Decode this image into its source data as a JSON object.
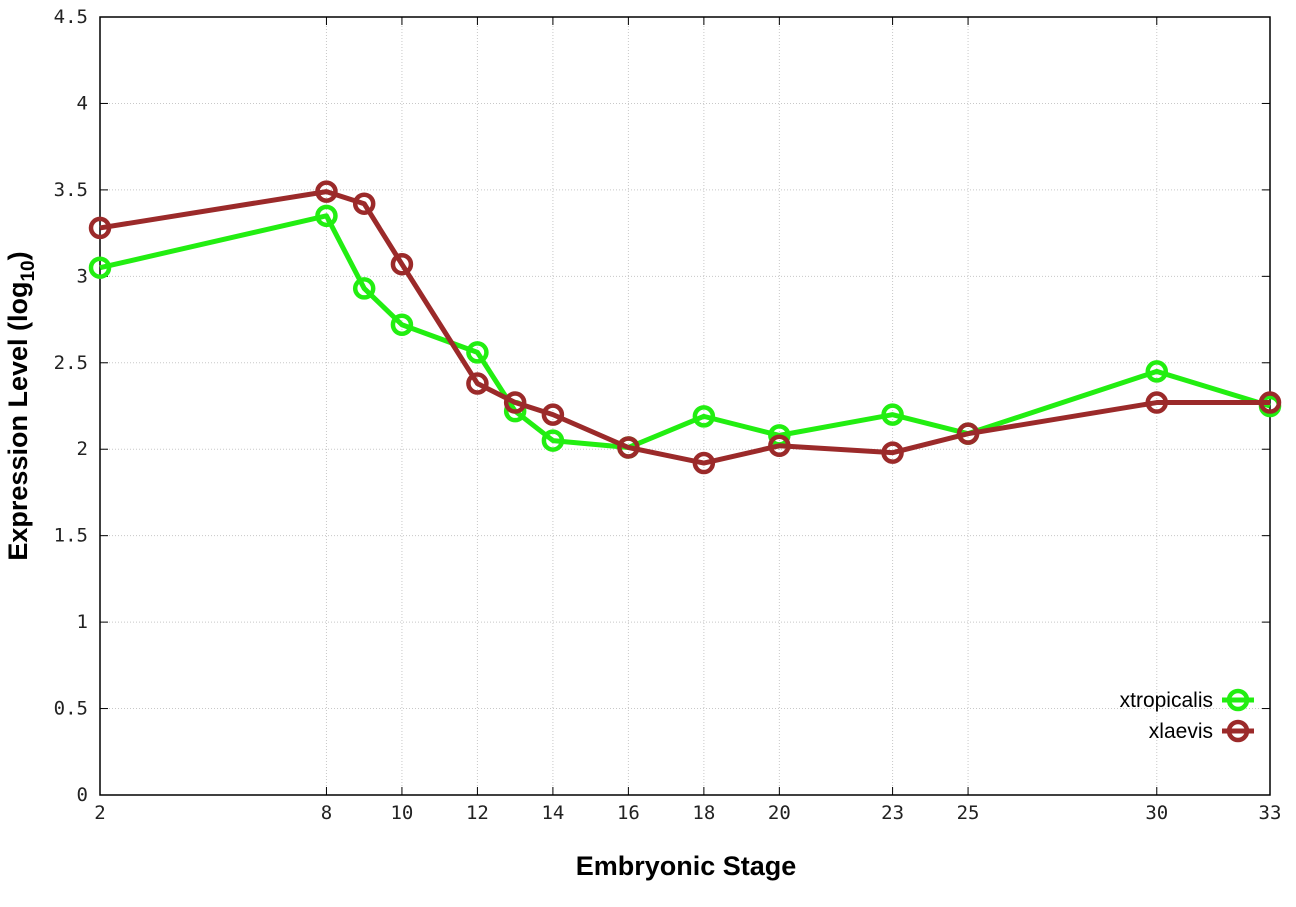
{
  "chart_data": {
    "type": "line",
    "title": "",
    "xlabel": "Embryonic Stage",
    "ylabel": {
      "main": "Expression Level (log",
      "sub": "10",
      "close": ")"
    },
    "xlim": [
      2,
      33
    ],
    "ylim": [
      0,
      4.5
    ],
    "x_ticks": [
      2,
      8,
      10,
      12,
      14,
      16,
      18,
      20,
      23,
      25,
      30,
      33
    ],
    "y_ticks": [
      0,
      0.5,
      1,
      1.5,
      2,
      2.5,
      3,
      3.5,
      4,
      4.5
    ],
    "y_tick_labels": [
      "0",
      "0.5",
      "1",
      "1.5",
      "2",
      "2.5",
      "3",
      "3.5",
      "4",
      "4.5"
    ],
    "grid": true,
    "legend_position": "bottom-right",
    "x": [
      2,
      8,
      9,
      10,
      12,
      13,
      14,
      16,
      18,
      20,
      23,
      25,
      30,
      33
    ],
    "series": [
      {
        "name": "xtropicalis",
        "color": "#22ee11",
        "values": [
          3.05,
          3.35,
          2.93,
          2.72,
          2.56,
          2.22,
          2.05,
          2.01,
          2.19,
          2.08,
          2.2,
          2.09,
          2.45,
          2.25
        ]
      },
      {
        "name": "xlaevis",
        "color": "#9b2a2a",
        "values": [
          3.28,
          3.49,
          3.42,
          3.07,
          2.38,
          2.27,
          2.2,
          2.01,
          1.92,
          2.02,
          1.98,
          2.09,
          2.27,
          2.27
        ]
      }
    ]
  }
}
